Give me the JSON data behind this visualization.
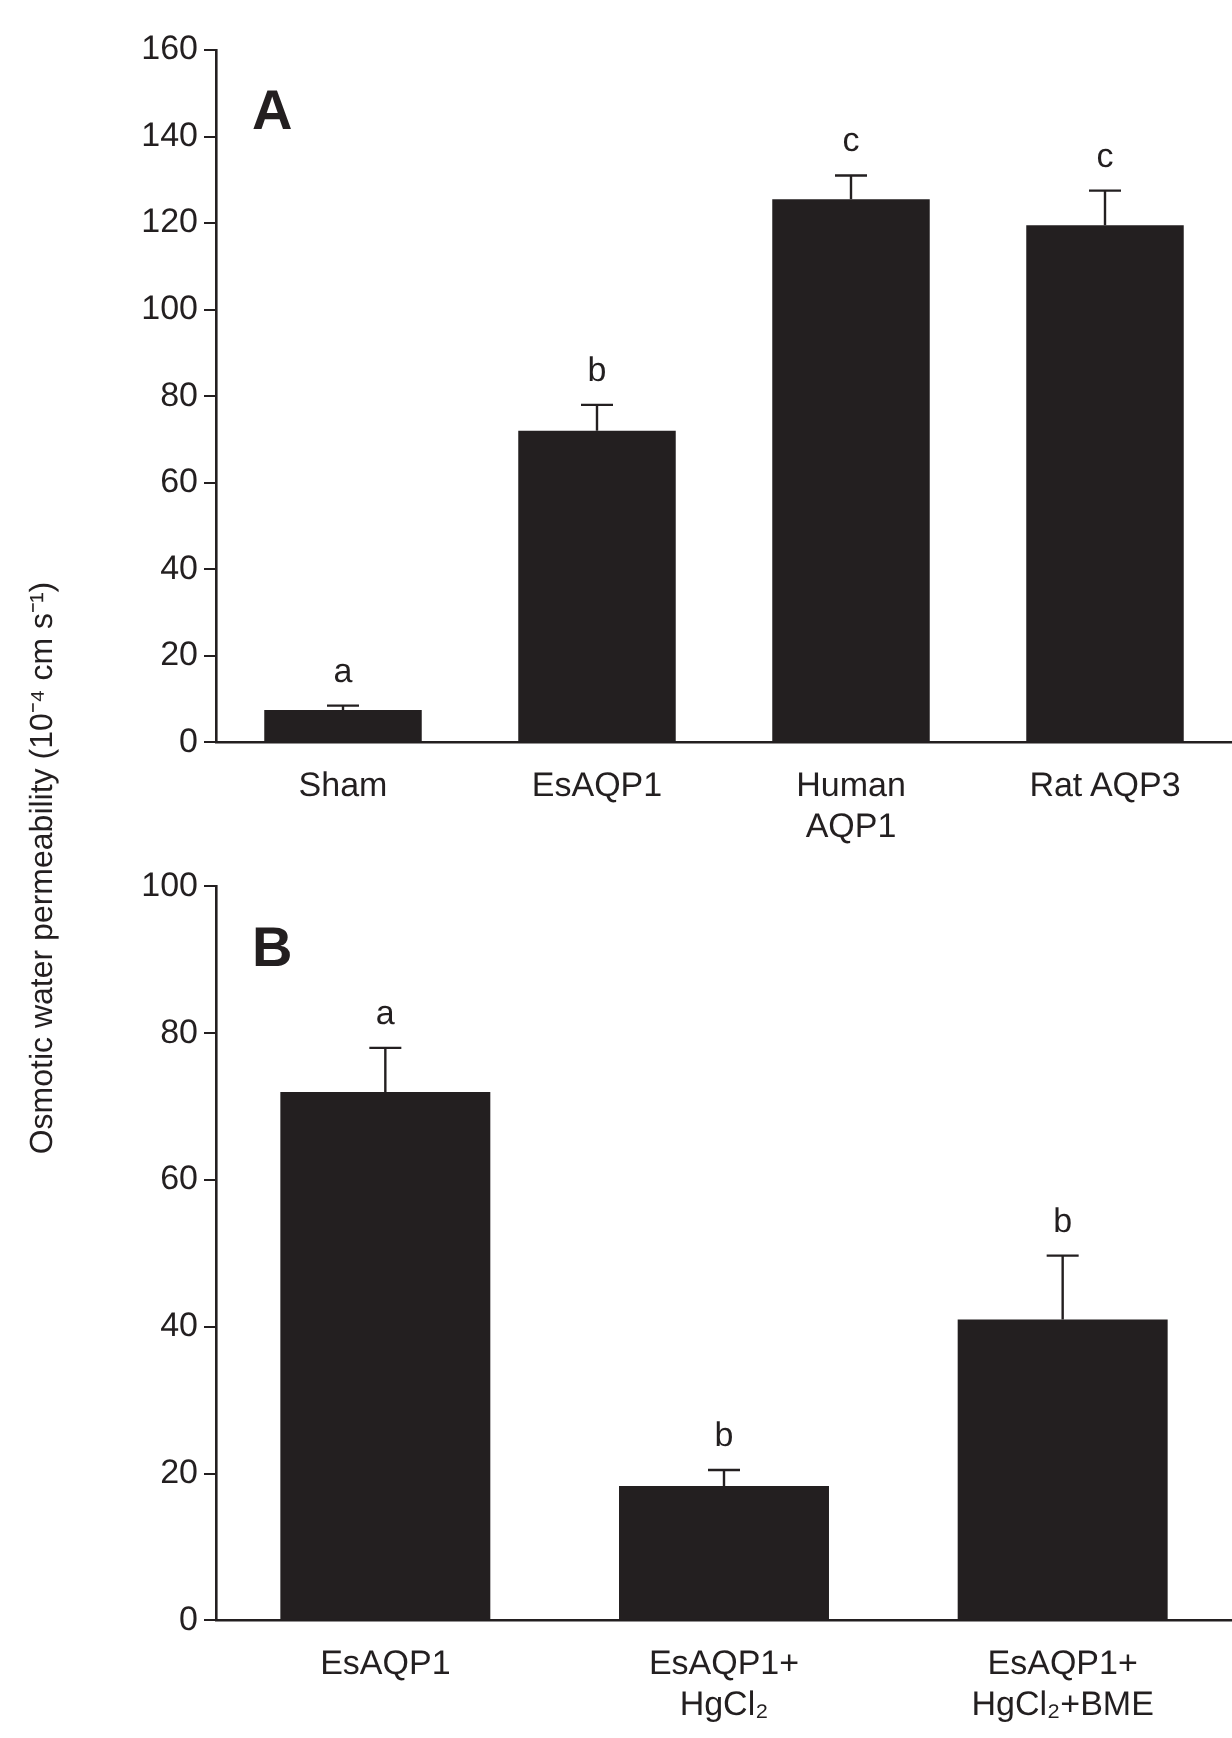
{
  "chart_data": [
    {
      "type": "bar",
      "title": "A",
      "ylabel": "Osmotic water permeability (10⁻⁴ cm s⁻¹)",
      "categories": [
        "Sham",
        "EsAQP1",
        "Human\nAQP1",
        "Rat AQP3"
      ],
      "values": [
        7.5,
        72,
        125.5,
        119.5
      ],
      "errors": [
        [
          7.5,
          8.5
        ],
        [
          72,
          78
        ],
        [
          125.5,
          131
        ],
        [
          119.5,
          127.5
        ]
      ],
      "color": "#231f20",
      "ylim": [
        0,
        160
      ],
      "yticks": [
        0,
        20,
        40,
        60,
        80,
        100,
        120,
        140,
        160
      ],
      "grid": false,
      "value_labels": [
        "a",
        "b",
        "c",
        "c"
      ]
    },
    {
      "type": "bar",
      "title": "B",
      "categories": [
        "EsAQP1",
        "EsAQP1+\nHgCl₂",
        "EsAQP1+\nHgCl₂+BME"
      ],
      "values": [
        72,
        18.3,
        41
      ],
      "errors": [
        [
          72,
          78
        ],
        [
          18.3,
          20.5
        ],
        [
          41,
          49.7
        ]
      ],
      "color": "#231f20",
      "ylim": [
        0,
        100
      ],
      "yticks": [
        0,
        20,
        40,
        60,
        80,
        100
      ],
      "grid": false,
      "value_labels": [
        "a",
        "b",
        "b"
      ]
    }
  ]
}
